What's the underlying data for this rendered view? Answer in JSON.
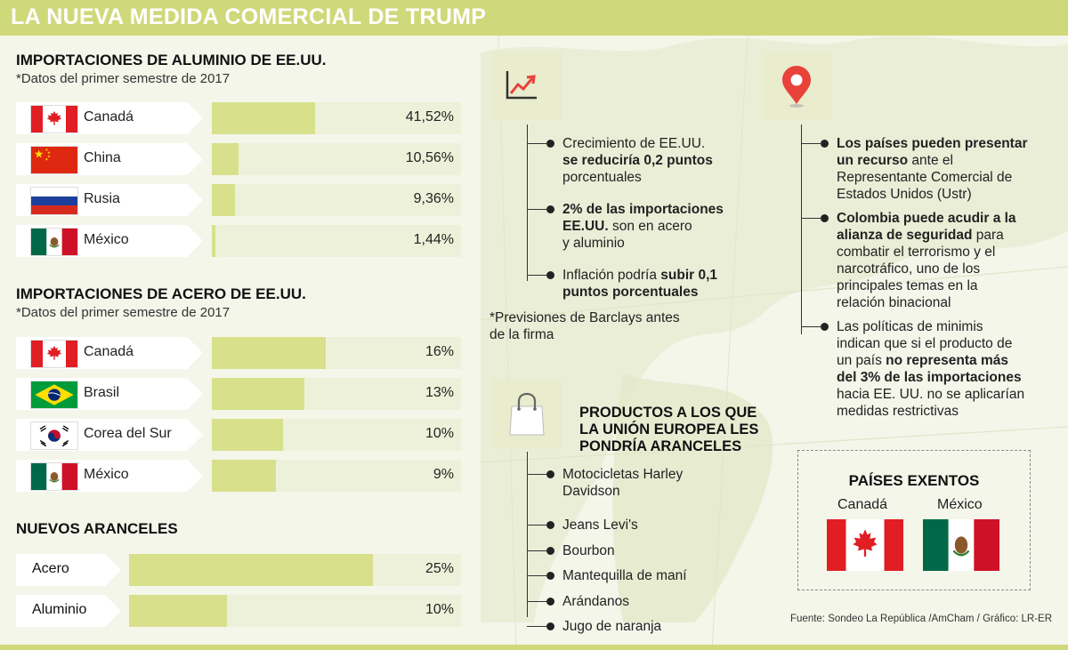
{
  "title": "LA NUEVA MEDIDA COMERCIAL DE TRUMP",
  "colors": {
    "bar_fill": "#d8e08c",
    "bar_track": "#eef1d9",
    "header": "#cfd97a",
    "icon_red": "#e8423a"
  },
  "aluminum": {
    "title": "IMPORTACIONES DE ALUMINIO DE EE.UU.",
    "note": "*Datos del primer semestre de 2017",
    "rows": [
      {
        "country": "Canadá",
        "flag": "canada-flag-icon",
        "label": "41,52%"
      },
      {
        "country": "China",
        "flag": "china-flag-icon",
        "label": "10,56%"
      },
      {
        "country": "Rusia",
        "flag": "russia-flag-icon",
        "label": "9,36%"
      },
      {
        "country": "México",
        "flag": "mexico-flag-icon",
        "label": "1,44%"
      }
    ]
  },
  "steel": {
    "title": "IMPORTACIONES DE ACERO DE EE.UU.",
    "note": "*Datos del primer semestre de 2017",
    "rows": [
      {
        "country": "Canadá",
        "flag": "canada-flag-icon",
        "label": "16%"
      },
      {
        "country": "Brasil",
        "flag": "brazil-flag-icon",
        "label": "13%"
      },
      {
        "country": "Corea del Sur",
        "flag": "south-korea-flag-icon",
        "label": "10%"
      },
      {
        "country": "México",
        "flag": "mexico-flag-icon",
        "label": "9%"
      }
    ]
  },
  "tariffs": {
    "title": "NUEVOS ARANCELES",
    "rows": [
      {
        "name": "Acero",
        "label": "25%"
      },
      {
        "name": "Aluminio",
        "label": "10%"
      }
    ]
  },
  "chart_data": [
    {
      "type": "bar",
      "title": "IMPORTACIONES DE ALUMINIO DE EE.UU.",
      "subtitle": "*Datos del primer semestre de 2017",
      "categories": [
        "Canadá",
        "China",
        "Rusia",
        "México"
      ],
      "values": [
        41.52,
        10.56,
        9.36,
        1.44
      ],
      "unit": "%",
      "xlim": [
        0,
        100
      ]
    },
    {
      "type": "bar",
      "title": "IMPORTACIONES DE ACERO DE EE.UU.",
      "subtitle": "*Datos del primer semestre de 2017",
      "categories": [
        "Canadá",
        "Brasil",
        "Corea del Sur",
        "México"
      ],
      "values": [
        16,
        13,
        10,
        9
      ],
      "unit": "%",
      "xlim": [
        0,
        35
      ]
    },
    {
      "type": "bar",
      "title": "NUEVOS ARANCELES",
      "categories": [
        "Acero",
        "Aluminio"
      ],
      "values": [
        25,
        10
      ],
      "unit": "%",
      "xlim": [
        0,
        34
      ]
    }
  ],
  "growth": {
    "icon": "growth-chart-icon",
    "items": [
      [
        {
          "t": "Crecimiento de EE.UU."
        },
        {
          "t": "se reduciría 0,2 puntos",
          "b": true
        },
        {
          "t": "porcentuales"
        }
      ],
      [
        {
          "t": "2% de las importaciones",
          "b": true
        },
        {
          "t": "EE.UU.",
          "b": true,
          "i": " son en acero"
        },
        {
          "t": "y aluminio"
        }
      ],
      [
        {
          "t": "Inflación podría ",
          "i2": "subir 0,1"
        },
        {
          "t": "puntos porcentuales",
          "b": true
        }
      ]
    ],
    "note_lines": [
      "*Previsiones de Barclays antes",
      "de la firma"
    ]
  },
  "countries_info": {
    "icon": "location-pin-icon",
    "items": [
      [
        {
          "t": "Los países pueden presentar",
          "b": true
        },
        {
          "t": "un recurso",
          "b": true,
          "i": " ante el"
        },
        {
          "t": "Representante Comercial de"
        },
        {
          "t": "Estados Unidos (Ustr)"
        }
      ],
      [
        {
          "t": "Colombia puede acudir a la",
          "b": true
        },
        {
          "t": "alianza de seguridad",
          "b": true,
          "i": " para"
        },
        {
          "t": "combatir el terrorismo y el"
        },
        {
          "t": "narcotráfico, uno de los"
        },
        {
          "t": "principales temas en la"
        },
        {
          "t": "relación binacional"
        }
      ],
      [
        {
          "t": "Las políticas de minimis"
        },
        {
          "t": "indican que si el producto de"
        },
        {
          "t": "un país ",
          "i2": "no representa más"
        },
        {
          "t": "del 3% de las importaciones",
          "b": true
        },
        {
          "t": "hacia EE. UU. no se aplicarían"
        },
        {
          "t": "medidas restrictivas"
        }
      ]
    ]
  },
  "eu": {
    "icon": "shopping-bag-icon",
    "title_lines": [
      "PRODUCTOS A LOS QUE",
      "LA UNIÓN EUROPEA LES",
      "PONDRÍA ARANCELES"
    ],
    "items": [
      [
        "Motocicletas Harley",
        "Davidson"
      ],
      [
        "Jeans Levi's"
      ],
      [
        "Bourbon"
      ],
      [
        "Mantequilla de maní"
      ],
      [
        "Arándanos"
      ],
      [
        "Jugo de naranja"
      ]
    ]
  },
  "exempt": {
    "title": "PAÍSES EXENTOS",
    "countries": [
      {
        "name": "Canadá",
        "flag": "canada-flag-icon"
      },
      {
        "name": "México",
        "flag": "mexico-flag-icon"
      }
    ]
  },
  "source": "Fuente: Sondeo La República /AmCham  / Gráfico: LR-ER"
}
